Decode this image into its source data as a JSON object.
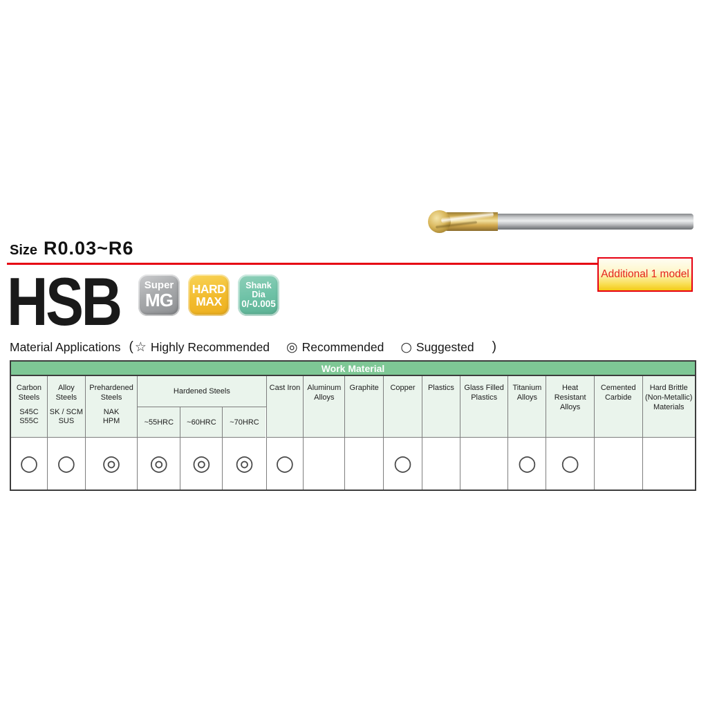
{
  "page": {
    "size_label": "Size",
    "size_value": "R0.03~R6",
    "product_name": "HSB",
    "additional_note": "Additional 1 model",
    "badges": [
      {
        "key": "super-mg",
        "lines": [
          "Super",
          "MG"
        ]
      },
      {
        "key": "hard-max",
        "lines": [
          "HARD",
          "MAX"
        ]
      },
      {
        "key": "shank-dia",
        "lines": [
          "Shank Dia",
          "0/-0.005"
        ]
      }
    ],
    "legend": {
      "title": "Material Applications",
      "open_paren": "(",
      "close_paren": ")",
      "items": [
        {
          "symbol": "☆",
          "label": "Highly Recommended"
        },
        {
          "symbol": "◎",
          "label": "Recommended"
        },
        {
          "symbol": "○",
          "label": "Suggested"
        }
      ]
    }
  },
  "colors": {
    "accent_red": "#e60012",
    "table_header_green": "#7ec795",
    "table_cell_green": "#eaf4ec",
    "callout_yellow": "#f4ca16",
    "badge_gray": "#a8aaac",
    "badge_yellow": "#f2bb2d",
    "badge_teal": "#6fc2a7"
  },
  "table": {
    "header": "Work Material",
    "symbol_map": {
      "recommended": "◎",
      "suggested": "○"
    },
    "columns": [
      {
        "key": "carbon-steels",
        "lines": [
          "Carbon",
          "Steels"
        ],
        "sub": [
          "S45C",
          "S55C"
        ],
        "rating": "suggested",
        "width": 53
      },
      {
        "key": "alloy-steels",
        "lines": [
          "Alloy",
          "Steels"
        ],
        "sub": [
          "SK / SCM",
          "SUS"
        ],
        "rating": "suggested",
        "width": 55
      },
      {
        "key": "prehardened-steels",
        "lines": [
          "Prehardened",
          "Steels"
        ],
        "sub": [
          "NAK",
          "HPM"
        ],
        "rating": "recommended",
        "width": 76
      },
      {
        "key": "hardened-steels",
        "name": "Hardened Steels",
        "subcols": [
          {
            "key": "55hrc",
            "name": "~55HRC",
            "rating": "recommended",
            "width": 63
          },
          {
            "key": "60hrc",
            "name": "~60HRC",
            "rating": "recommended",
            "width": 62
          },
          {
            "key": "70hrc",
            "name": "~70HRC",
            "rating": "recommended",
            "width": 64
          }
        ]
      },
      {
        "key": "cast-iron",
        "lines": [
          "Cast Iron"
        ],
        "rating": "suggested",
        "width": 54
      },
      {
        "key": "aluminum-alloys",
        "lines": [
          "Aluminum",
          "Alloys"
        ],
        "rating": "",
        "width": 60
      },
      {
        "key": "graphite",
        "lines": [
          "Graphite"
        ],
        "rating": "",
        "width": 56
      },
      {
        "key": "copper",
        "lines": [
          "Copper"
        ],
        "rating": "suggested",
        "width": 56
      },
      {
        "key": "plastics",
        "lines": [
          "Plastics"
        ],
        "rating": "",
        "width": 55
      },
      {
        "key": "glass-filled-plastics",
        "lines": [
          "Glass Filled",
          "Plastics"
        ],
        "rating": "",
        "width": 70
      },
      {
        "key": "titanium-alloys",
        "lines": [
          "Titanium",
          "Alloys"
        ],
        "rating": "suggested",
        "width": 55
      },
      {
        "key": "heat-resistant-alloys",
        "lines": [
          "Heat",
          "Resistant",
          "Alloys"
        ],
        "rating": "suggested",
        "width": 70
      },
      {
        "key": "cemented-carbide",
        "lines": [
          "Cemented",
          "Carbide"
        ],
        "rating": "",
        "width": 70
      },
      {
        "key": "hard-brittle",
        "lines": [
          "Hard Brittle",
          "(Non-Metallic)",
          "Materials"
        ],
        "rating": "",
        "width": 77
      }
    ]
  }
}
